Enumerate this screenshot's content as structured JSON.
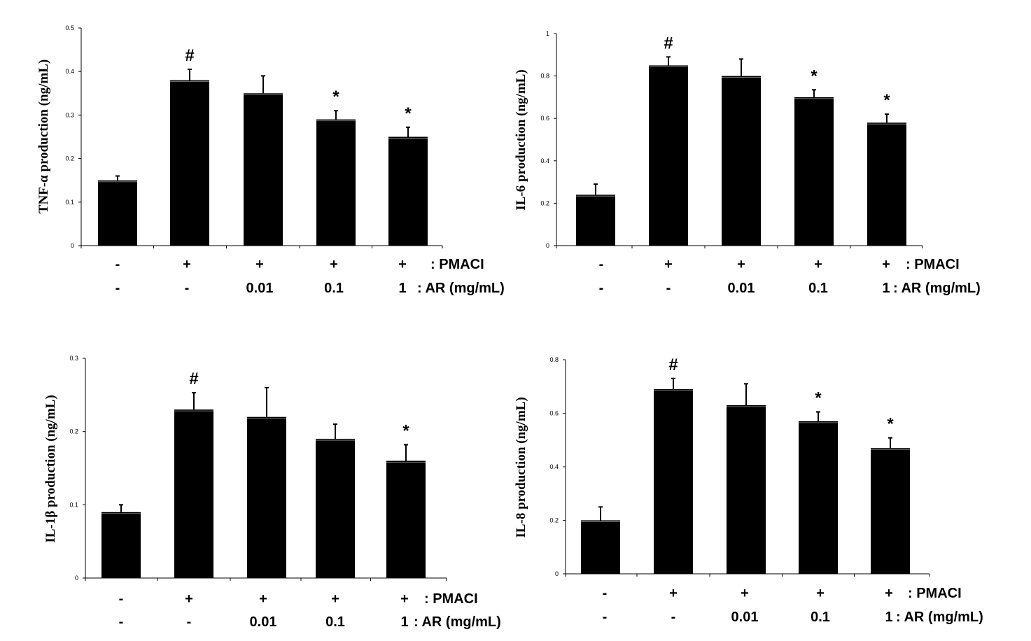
{
  "chart_data": [
    {
      "type": "bar",
      "ylabel": "TNF-α production  (ng/mL)",
      "ylim": [
        0,
        0.5
      ],
      "yticks": [
        "0",
        "0.1",
        "0.2",
        "0.3",
        "0.4",
        "0.5"
      ],
      "values": [
        0.15,
        0.38,
        0.35,
        0.29,
        0.25
      ],
      "errors": [
        0.01,
        0.025,
        0.04,
        0.02,
        0.022
      ],
      "marks": [
        "",
        "#",
        "",
        "*",
        "*"
      ],
      "rows": [
        {
          "cells": [
            "-",
            "+",
            "+",
            "+",
            "+"
          ],
          "label": ": PMACI"
        },
        {
          "cells": [
            "-",
            "-",
            "0.01",
            "0.1",
            "1"
          ],
          "label": ": AR (mg/mL)"
        }
      ]
    },
    {
      "type": "bar",
      "ylabel": "IL-6 production  (ng/mL)",
      "ylim": [
        0,
        1
      ],
      "yticks": [
        "0",
        "0.2",
        "0.4",
        "0.6",
        "0.8",
        "1"
      ],
      "values": [
        0.24,
        0.85,
        0.8,
        0.7,
        0.58
      ],
      "errors": [
        0.05,
        0.04,
        0.08,
        0.035,
        0.04
      ],
      "marks": [
        "",
        "#",
        "",
        "*",
        "*"
      ],
      "rows": [
        {
          "cells": [
            "-",
            "+",
            "+",
            "+",
            "+"
          ],
          "label": ": PMACI"
        },
        {
          "cells": [
            "-",
            "-",
            "0.01",
            "0.1",
            "1"
          ],
          "label": ": AR (mg/mL)"
        }
      ]
    },
    {
      "type": "bar",
      "ylabel": "IL-1β production  (ng/mL)",
      "ylim": [
        0,
        0.3
      ],
      "yticks": [
        "0",
        "0.1",
        "0.2",
        "0.3"
      ],
      "values": [
        0.09,
        0.23,
        0.22,
        0.19,
        0.16
      ],
      "errors": [
        0.01,
        0.023,
        0.04,
        0.02,
        0.022
      ],
      "marks": [
        "",
        "#",
        "",
        "",
        "*"
      ],
      "rows": [
        {
          "cells": [
            "-",
            "+",
            "+",
            "+",
            "+"
          ],
          "label": ": PMACI"
        },
        {
          "cells": [
            "-",
            "-",
            "0.01",
            "0.1",
            "1"
          ],
          "label": ": AR (mg/mL)"
        }
      ]
    },
    {
      "type": "bar",
      "ylabel": "IL-8 production  (ng/mL)",
      "ylim": [
        0,
        0.8
      ],
      "yticks": [
        "0",
        "0.2",
        "0.4",
        "0.6",
        "0.8"
      ],
      "values": [
        0.2,
        0.69,
        0.63,
        0.57,
        0.47
      ],
      "errors": [
        0.05,
        0.04,
        0.08,
        0.035,
        0.038
      ],
      "marks": [
        "",
        "#",
        "",
        "*",
        "*"
      ],
      "rows": [
        {
          "cells": [
            "-",
            "+",
            "+",
            "+",
            "+"
          ],
          "label": ": PMACI"
        },
        {
          "cells": [
            "-",
            "-",
            "0.01",
            "0.1",
            "1"
          ],
          "label": ": AR (mg/mL)"
        }
      ]
    }
  ]
}
